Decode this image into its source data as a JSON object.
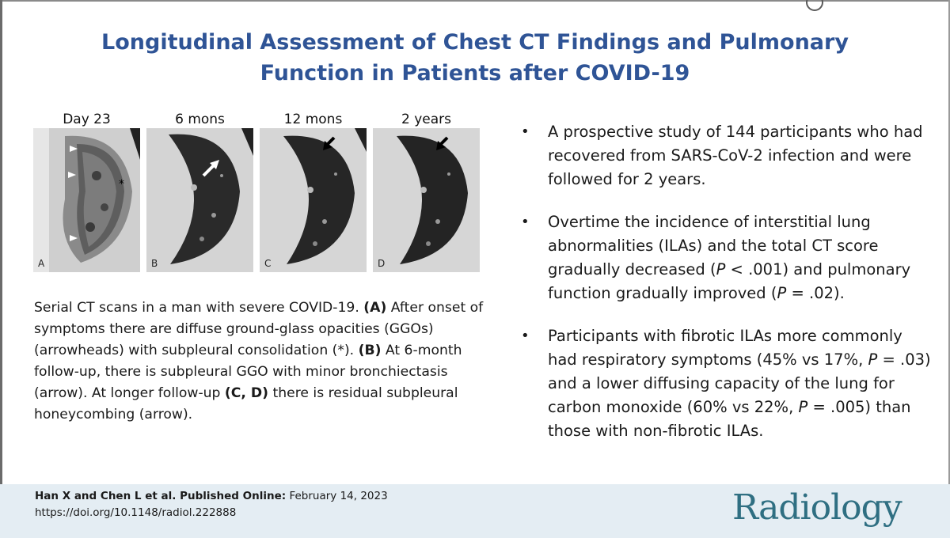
{
  "title": {
    "line1": "Longitudinal Assessment of Chest CT Findings and Pulmonary",
    "line2": "Function in Patients after COVID-19"
  },
  "panels": [
    {
      "time_label": "Day 23",
      "letter": "A"
    },
    {
      "time_label": "6 mons",
      "letter": "B"
    },
    {
      "time_label": "12 mons",
      "letter": "C"
    },
    {
      "time_label": "2 years",
      "letter": "D"
    }
  ],
  "caption": {
    "part1": "Serial CT scans in a man with severe COVID-19. ",
    "a_label": "(A)",
    "part2": " After onset of symptoms there are diffuse ground-glass opacities (GGOs) (arrowheads) with subpleural consolidation (*). ",
    "b_label": "(B)",
    "part3": " At 6-month follow-up, there is subpleural GGO with minor bronchiectasis (arrow). At longer follow-up ",
    "cd_label": "(C, D)",
    "part4": " there is residual subpleural honeycombing (arrow)."
  },
  "bullets": [
    {
      "text": "A prospective study of 144 participants who had recovered from SARS-CoV-2 infection and were followed for 2 years."
    },
    {
      "pre": "Overtime the incidence of interstitial lung abnormalities (ILAs) and the total CT score gradually decreased (",
      "p1": "P",
      "mid": " < .001) and pulmonary function gradually improved (",
      "p2": "P",
      "post": " = .02)."
    },
    {
      "pre": "Participants with fibrotic ILAs more commonly had respiratory symptoms (45% vs 17%, ",
      "p1": "P",
      "mid": " = .03) and a lower diffusing capacity of the lung for carbon monoxide (60% vs 22%, ",
      "p2": "P",
      "post": " = .005) than those with non-fibrotic ILAs."
    }
  ],
  "footer": {
    "authors": "Han X and Chen L et al. Published Online:",
    "date": " February 14, 2023",
    "doi": "https://doi.org/10.1148/radiol.222888",
    "logo": "Radiology"
  },
  "colors": {
    "title": "#2f5496",
    "footer_bg": "#e4edf3",
    "logo": "#2f6f82"
  }
}
